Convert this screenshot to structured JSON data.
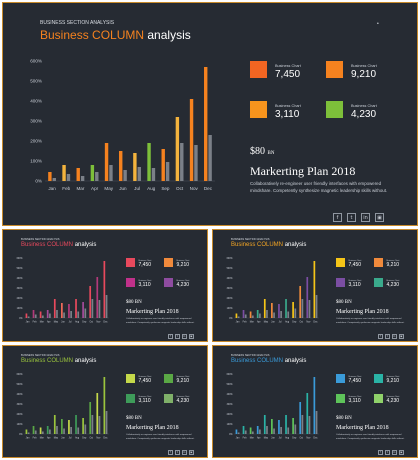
{
  "section_label": "BUSINESS SECTION ANALYSIS",
  "title_accent": "Business COLUMN",
  "title_rest": "analysis",
  "page_marker": "•",
  "chart_data": {
    "type": "bar",
    "categories": [
      "Jan",
      "Feb",
      "Mar",
      "Apr",
      "May",
      "Jun",
      "Jul",
      "Aug",
      "Sep",
      "Oct",
      "Nov",
      "Dec"
    ],
    "y_ticks": [
      "0%",
      "100%",
      "200%",
      "300%",
      "400%",
      "500%",
      "600%"
    ],
    "ylim": [
      0,
      600
    ],
    "series": [
      {
        "values": [
          45,
          80,
          65,
          80,
          190,
          150,
          140,
          190,
          160,
          320,
          410,
          570
        ]
      },
      {
        "values": [
          15,
          35,
          25,
          45,
          80,
          55,
          70,
          65,
          95,
          190,
          180,
          230
        ]
      }
    ]
  },
  "kpis": [
    {
      "label": "Business Chart",
      "value": "7,450"
    },
    {
      "label": "Business Chart",
      "value": "9,210"
    },
    {
      "label": "Business Chart",
      "value": "3,110"
    },
    {
      "label": "Business Chart",
      "value": "4,230"
    }
  ],
  "price": "$80",
  "price_unit": "BN",
  "plan_title": "Markerting Plan 2018",
  "plan_desc_line1": "Collaboratively re-engineer user friendly interfaces with empowered",
  "plan_desc_line2": "mindshare. Competently synthesize magnetic leadership skills without.",
  "social_icons": [
    "f",
    "t",
    "in",
    "▣"
  ],
  "themes": {
    "main": {
      "accent": "#f5821f",
      "bars": [
        "#f5821f",
        "#f3b33d",
        "#f5821f",
        "#7dbf3a",
        "#f5821f",
        "#f5821f",
        "#f3b33d",
        "#7dbf3a",
        "#f5821f",
        "#f3b33d",
        "#f5821f",
        "#f5821f"
      ],
      "kpi": [
        "#f26522",
        "#f5821f",
        "#f7941d",
        "#7dbf3a"
      ]
    },
    "red": {
      "accent": "#e8495d",
      "bars": [
        "#e8495d",
        "#b23a7a",
        "#e8495d",
        "#a44b9a",
        "#e8495d",
        "#f06b5a",
        "#b23a7a",
        "#e8495d",
        "#a44b9a",
        "#e8495d",
        "#b23a7a",
        "#e8495d"
      ],
      "kpi": [
        "#e8495d",
        "#f08a3c",
        "#c0318a",
        "#8e4ca0"
      ]
    },
    "purple": {
      "accent": "#f5a623",
      "bars": [
        "#f5c518",
        "#7b4ea3",
        "#f08a3c",
        "#3aaa8c",
        "#f5c518",
        "#f08a3c",
        "#7b4ea3",
        "#3aaa8c",
        "#f5c518",
        "#f08a3c",
        "#7b4ea3",
        "#f5c518"
      ],
      "kpi": [
        "#f5c518",
        "#f08a3c",
        "#7b4ea3",
        "#3aaa8c"
      ]
    },
    "green": {
      "accent": "#9bc53d",
      "bars": [
        "#9bc53d",
        "#5aa845",
        "#c5d94a",
        "#3e9c5a",
        "#9bc53d",
        "#5aa845",
        "#c5d94a",
        "#3e9c5a",
        "#9bc53d",
        "#5aa845",
        "#c5d94a",
        "#9bc53d"
      ],
      "kpi": [
        "#c5d94a",
        "#5aa845",
        "#3e9c5a",
        "#7fb069"
      ]
    },
    "blue": {
      "accent": "#3a9bd9",
      "bars": [
        "#3a9bd9",
        "#2ab3a6",
        "#5ec45a",
        "#3a9bd9",
        "#2ab3a6",
        "#5ec45a",
        "#3a9bd9",
        "#2ab3a6",
        "#5ec45a",
        "#3a9bd9",
        "#2ab3a6",
        "#3a9bd9"
      ],
      "kpi": [
        "#3a9bd9",
        "#2ab3a6",
        "#5ec45a",
        "#8fd16a"
      ]
    }
  }
}
